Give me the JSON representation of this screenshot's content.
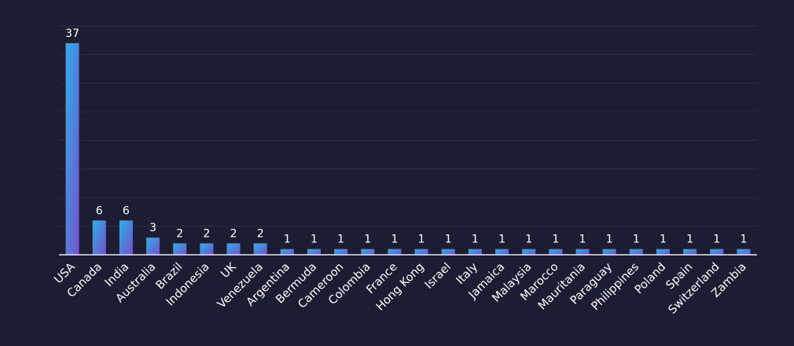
{
  "chart_data": {
    "type": "bar",
    "title": "",
    "xlabel": "",
    "ylabel": "",
    "categories": [
      "USA",
      "Canada",
      "India",
      "Australia",
      "Brazil",
      "Indonesia",
      "UK",
      "Venezuela",
      "Argentina",
      "Bermuda",
      "Cameroon",
      "Colombia",
      "France",
      "Hong Kong",
      "Israel",
      "Italy",
      "Jamaica",
      "Malaysia",
      "Marocco",
      "Mauritania",
      "Paraguay",
      "Philippines",
      "Poland",
      "Spain",
      "Switzerland",
      "Zambia"
    ],
    "values": [
      37,
      6,
      6,
      3,
      2,
      2,
      2,
      2,
      1,
      1,
      1,
      1,
      1,
      1,
      1,
      1,
      1,
      1,
      1,
      1,
      1,
      1,
      1,
      1,
      1,
      1
    ],
    "ylim": [
      0,
      40
    ],
    "grid": true,
    "data_labels": true,
    "colors": {
      "background": "#1c1d33",
      "bar_top": "#2ab0f0",
      "bar_bottom": "#7b4fc4",
      "grid": "#2c2e48",
      "text": "#ffffff"
    }
  }
}
